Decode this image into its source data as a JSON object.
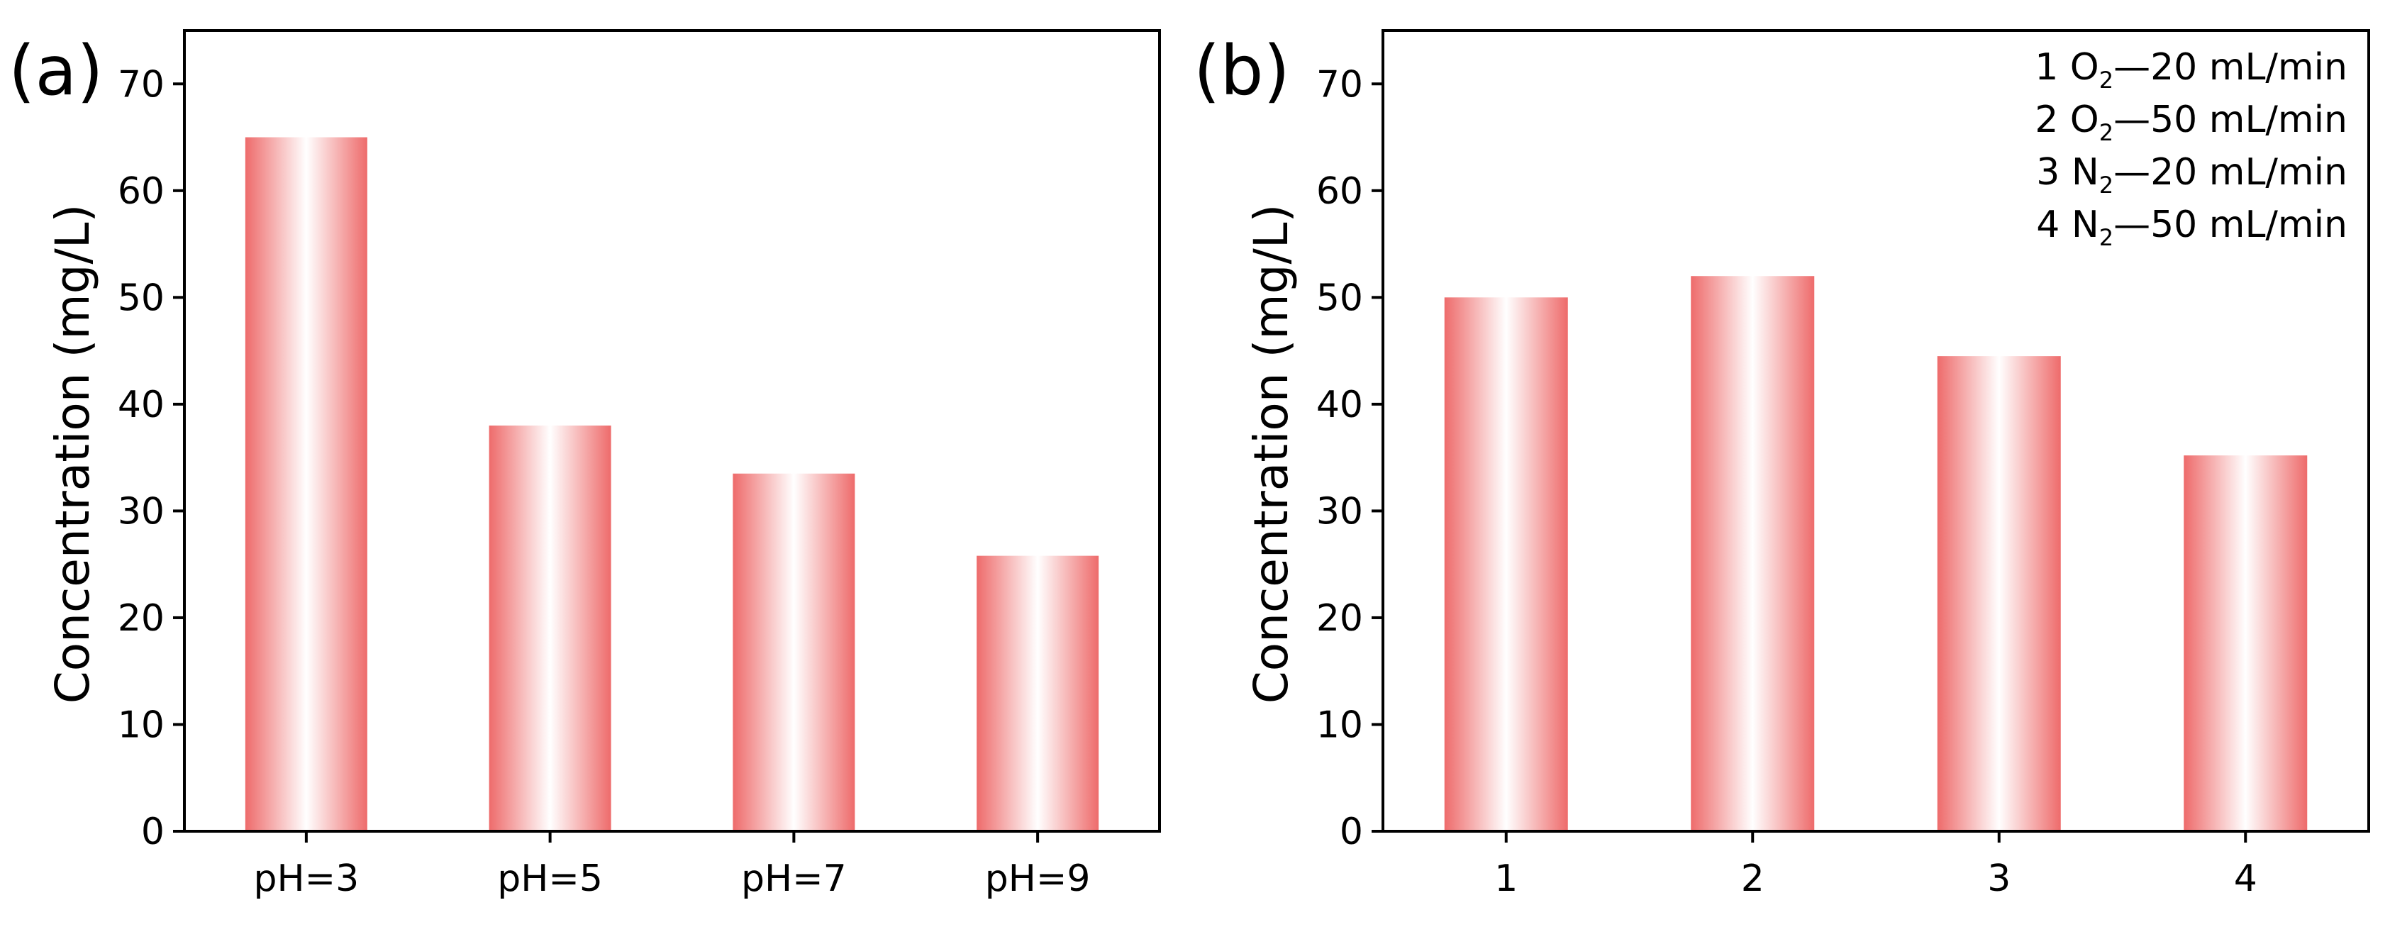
{
  "chart_data": [
    {
      "panel_label": "(a)",
      "type": "bar",
      "categories": [
        "pH=3",
        "pH=5",
        "pH=7",
        "pH=9"
      ],
      "values": [
        65,
        38,
        33.5,
        25.8
      ],
      "ylabel": "Concentration (mg/L)",
      "xlabel": "",
      "ylim": [
        0,
        75
      ],
      "yticks": [
        "0",
        "10",
        "20",
        "30",
        "40",
        "50",
        "60",
        "70"
      ],
      "bar_color": "#ee6b6b",
      "legend": []
    },
    {
      "panel_label": "(b)",
      "type": "bar",
      "categories": [
        "1",
        "2",
        "3",
        "4"
      ],
      "values": [
        50,
        52,
        44.5,
        35.2
      ],
      "ylabel": "Concentration (mg/L)",
      "xlabel": "",
      "ylim": [
        0,
        75
      ],
      "yticks": [
        "0",
        "10",
        "20",
        "30",
        "40",
        "50",
        "60",
        "70"
      ],
      "bar_color": "#ee6b6b",
      "legend": [
        {
          "num": "1",
          "gas": "O",
          "sub": "2",
          "rate": "—20 mL/min"
        },
        {
          "num": "2",
          "gas": "O",
          "sub": "2",
          "rate": "—50 mL/min"
        },
        {
          "num": "3",
          "gas": "N",
          "sub": "2",
          "rate": "—20 mL/min"
        },
        {
          "num": "4",
          "gas": "N",
          "sub": "2",
          "rate": "—50 mL/min"
        }
      ]
    }
  ]
}
